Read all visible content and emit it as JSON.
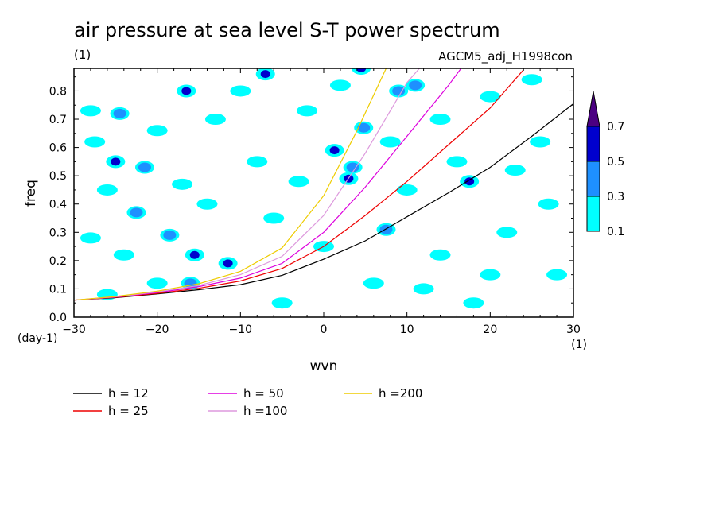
{
  "chart_data": {
    "type": "heatmap",
    "title": "air pressure at sea level S-T power spectrum",
    "subtitle_left": "(1)",
    "subtitle_right": "AGCM5_adj_H1998con",
    "xlabel": "wvn",
    "ylabel": "freq",
    "x_unit": "(1)",
    "y_unit": "(day-1)",
    "xlim": [
      -30,
      30
    ],
    "ylim": [
      0,
      0.88
    ],
    "x_ticks": [
      -30,
      -20,
      -10,
      0,
      10,
      20,
      30
    ],
    "y_ticks": [
      0.0,
      0.1,
      0.2,
      0.3,
      0.4,
      0.5,
      0.6,
      0.7,
      0.8
    ],
    "colorbar": {
      "levels": [
        0.1,
        0.3,
        0.5,
        0.7
      ],
      "labels": [
        "0.1",
        "0.3",
        "0.5",
        "0.7"
      ],
      "colors": [
        "#00ffff",
        "#1e90ff",
        "#0000cd",
        "#4b0082"
      ]
    },
    "contour_regions": [
      {
        "x": -25,
        "y": 0.55,
        "level": 0.5
      },
      {
        "x": -24.5,
        "y": 0.72,
        "level": 0.3
      },
      {
        "x": -16.5,
        "y": 0.8,
        "level": 0.5
      },
      {
        "x": -21.5,
        "y": 0.53,
        "level": 0.3
      },
      {
        "x": -22.5,
        "y": 0.37,
        "level": 0.3
      },
      {
        "x": -18.5,
        "y": 0.29,
        "level": 0.3
      },
      {
        "x": -15.5,
        "y": 0.22,
        "level": 0.5
      },
      {
        "x": -11.5,
        "y": 0.19,
        "level": 0.5
      },
      {
        "x": -7,
        "y": 0.86,
        "level": 0.5
      },
      {
        "x": 1.3,
        "y": 0.59,
        "level": 0.5
      },
      {
        "x": 3.5,
        "y": 0.53,
        "level": 0.3
      },
      {
        "x": 4.8,
        "y": 0.67,
        "level": 0.3
      },
      {
        "x": 3,
        "y": 0.49,
        "level": 0.5
      },
      {
        "x": 4.5,
        "y": 0.88,
        "level": 0.5
      },
      {
        "x": 7.5,
        "y": 0.31,
        "level": 0.3
      },
      {
        "x": 9,
        "y": 0.8,
        "level": 0.3
      },
      {
        "x": 17.5,
        "y": 0.48,
        "level": 0.5
      },
      {
        "x": -16,
        "y": 0.12,
        "level": 0.3
      },
      {
        "x": 11,
        "y": 0.82,
        "level": 0.3
      },
      {
        "x": -28,
        "y": 0.73,
        "level": 0.1
      },
      {
        "x": -26,
        "y": 0.45,
        "level": 0.1
      },
      {
        "x": -27.5,
        "y": 0.62,
        "level": 0.1
      },
      {
        "x": -20,
        "y": 0.66,
        "level": 0.1
      },
      {
        "x": -13,
        "y": 0.7,
        "level": 0.1
      },
      {
        "x": -8,
        "y": 0.55,
        "level": 0.1
      },
      {
        "x": -2,
        "y": 0.73,
        "level": 0.1
      },
      {
        "x": -6,
        "y": 0.35,
        "level": 0.1
      },
      {
        "x": -14,
        "y": 0.4,
        "level": 0.1
      },
      {
        "x": -24,
        "y": 0.22,
        "level": 0.1
      },
      {
        "x": -20,
        "y": 0.12,
        "level": 0.1
      },
      {
        "x": -3,
        "y": 0.48,
        "level": 0.1
      },
      {
        "x": 8,
        "y": 0.62,
        "level": 0.1
      },
      {
        "x": 14,
        "y": 0.7,
        "level": 0.1
      },
      {
        "x": 20,
        "y": 0.78,
        "level": 0.1
      },
      {
        "x": 26,
        "y": 0.62,
        "level": 0.1
      },
      {
        "x": 22,
        "y": 0.3,
        "level": 0.1
      },
      {
        "x": 27,
        "y": 0.4,
        "level": 0.1
      },
      {
        "x": 14,
        "y": 0.22,
        "level": 0.1
      },
      {
        "x": 6,
        "y": 0.12,
        "level": 0.1
      },
      {
        "x": 18,
        "y": 0.05,
        "level": 0.1
      },
      {
        "x": 28,
        "y": 0.15,
        "level": 0.1
      },
      {
        "x": -5,
        "y": 0.05,
        "level": 0.1
      },
      {
        "x": -28,
        "y": 0.28,
        "level": 0.1
      },
      {
        "x": 10,
        "y": 0.45,
        "level": 0.1
      },
      {
        "x": 16,
        "y": 0.55,
        "level": 0.1
      },
      {
        "x": 23,
        "y": 0.52,
        "level": 0.1
      },
      {
        "x": -10,
        "y": 0.8,
        "level": 0.1
      },
      {
        "x": 2,
        "y": 0.82,
        "level": 0.1
      },
      {
        "x": 0,
        "y": 0.25,
        "level": 0.1
      },
      {
        "x": -26,
        "y": 0.08,
        "level": 0.1
      },
      {
        "x": 25,
        "y": 0.84,
        "level": 0.1
      },
      {
        "x": -17,
        "y": 0.47,
        "level": 0.1
      },
      {
        "x": 20,
        "y": 0.15,
        "level": 0.1
      },
      {
        "x": 12,
        "y": 0.1,
        "level": 0.1
      }
    ],
    "series": [
      {
        "name": "h = 12",
        "h": 12,
        "color": "#000000",
        "x": [
          -30,
          -25,
          -20,
          -15,
          -10,
          -5,
          0,
          5,
          10,
          15,
          20,
          25,
          30
        ],
        "y": [
          0.06,
          0.069,
          0.082,
          0.097,
          0.115,
          0.148,
          0.205,
          0.27,
          0.355,
          0.44,
          0.53,
          0.64,
          0.755
        ]
      },
      {
        "name": "h = 25",
        "h": 25,
        "color": "#ee0000",
        "x": [
          -30,
          -25,
          -20,
          -15,
          -10,
          -5,
          0,
          5,
          10,
          15,
          20,
          24
        ],
        "y": [
          0.06,
          0.07,
          0.084,
          0.102,
          0.128,
          0.172,
          0.25,
          0.36,
          0.48,
          0.61,
          0.74,
          0.875
        ]
      },
      {
        "name": "h = 50",
        "h": 50,
        "color": "#dd00dd",
        "x": [
          -30,
          -25,
          -20,
          -15,
          -10,
          -5,
          0,
          5,
          10,
          15,
          16.5
        ],
        "y": [
          0.06,
          0.071,
          0.087,
          0.108,
          0.138,
          0.19,
          0.3,
          0.46,
          0.64,
          0.82,
          0.88
        ]
      },
      {
        "name": "h =100",
        "h": 100,
        "color": "#dd99dd",
        "x": [
          -30,
          -25,
          -20,
          -15,
          -10,
          -5,
          0,
          5,
          10,
          11.5
        ],
        "y": [
          0.06,
          0.072,
          0.089,
          0.112,
          0.15,
          0.215,
          0.36,
          0.58,
          0.83,
          0.88
        ]
      },
      {
        "name": "h =200",
        "h": 200,
        "color": "#eecc00",
        "x": [
          -30,
          -25,
          -20,
          -15,
          -10,
          -5,
          0,
          4,
          7.5
        ],
        "y": [
          0.06,
          0.073,
          0.092,
          0.118,
          0.162,
          0.245,
          0.43,
          0.66,
          0.88
        ]
      }
    ]
  }
}
